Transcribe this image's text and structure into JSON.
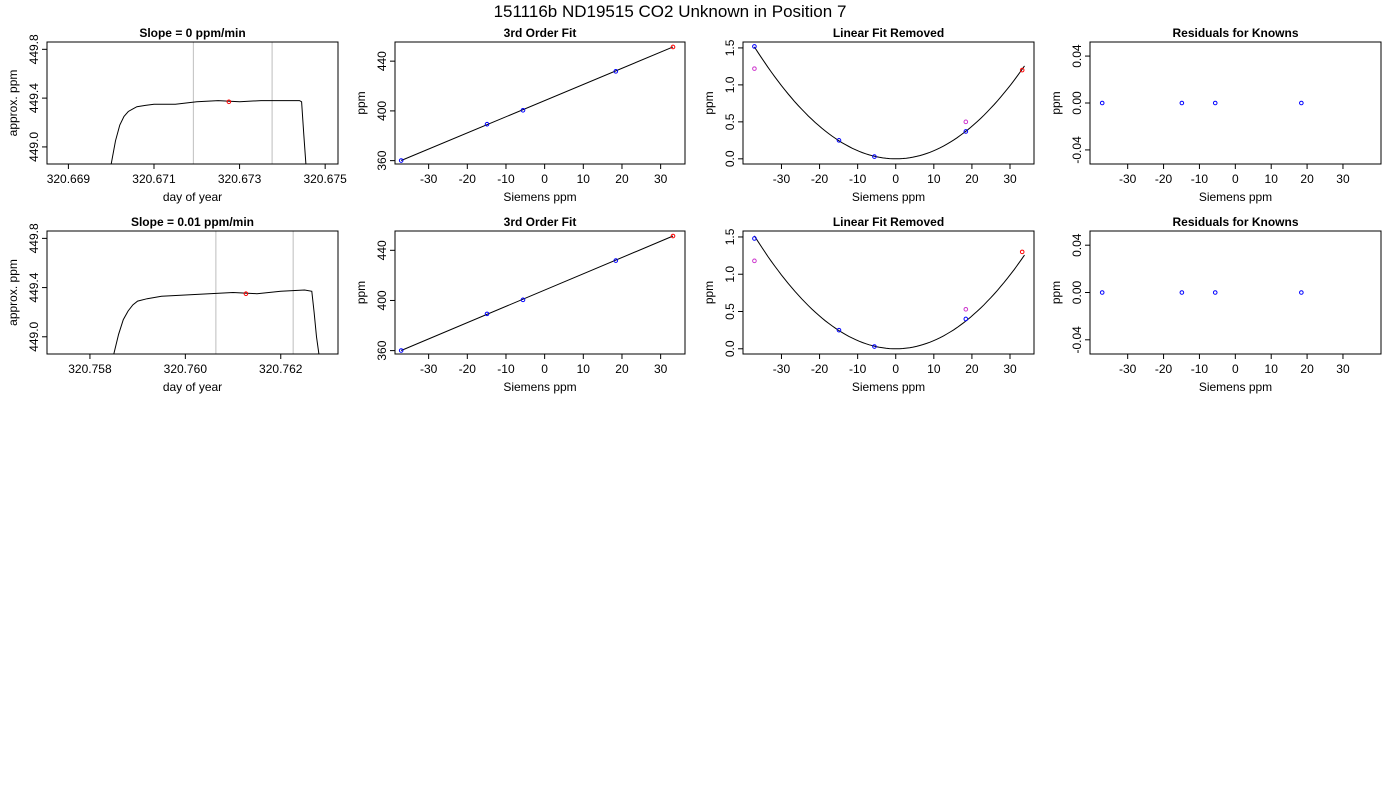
{
  "page_title": "151116b     ND19515   CO2 Unknown in Position  7",
  "colors": {
    "line": "#000000",
    "known_point": "#0000ff",
    "unknown_point": "#ff0000",
    "alt_point": "#cc33cc",
    "vline": "#bebebe"
  },
  "chart_data": [
    {
      "type": "line",
      "title": "Slope =  0  ppm/min",
      "xlabel": "day of year",
      "ylabel": "approx. ppm",
      "xlim": [
        320.6685,
        320.6753
      ],
      "ylim": [
        448.86,
        449.86
      ],
      "xticks": [
        "320.669",
        "320.671",
        "320.673",
        "320.675"
      ],
      "yticks": [
        "449.0",
        "449.4",
        "449.8"
      ],
      "vlines": [
        320.67192,
        320.67376
      ],
      "series": [
        {
          "x": [
            320.67,
            320.6701,
            320.6702,
            320.6703,
            320.6704,
            320.6705,
            320.6706,
            320.6708,
            320.671,
            320.6715,
            320.672,
            320.6725,
            320.673,
            320.6735,
            320.674,
            320.6744,
            320.67445,
            320.6745,
            320.67455
          ],
          "y": [
            448.86,
            449.05,
            449.18,
            449.25,
            449.29,
            449.31,
            449.33,
            449.34,
            449.35,
            449.35,
            449.37,
            449.38,
            449.37,
            449.38,
            449.38,
            449.38,
            449.37,
            449.1,
            448.86
          ]
        }
      ],
      "markers": [
        {
          "x": 320.67275,
          "y": 449.37,
          "color": "unknown"
        }
      ]
    },
    {
      "type": "scatter",
      "title": "3rd Order Fit",
      "xlabel": "Siemens ppm",
      "ylabel": "ppm",
      "xlim": [
        -38.7,
        36.3
      ],
      "ylim": [
        357.3,
        455.4
      ],
      "xticks": [
        "-30",
        "-20",
        "-10",
        "0",
        "10",
        "20",
        "30"
      ],
      "yticks": [
        "360",
        "400",
        "440"
      ],
      "fit_line": {
        "x": [
          -37.1,
          33.2
        ],
        "y": [
          360.1,
          451.4
        ]
      },
      "points": [
        {
          "x": -37.1,
          "y": 360.1,
          "color": "known"
        },
        {
          "x": -14.9,
          "y": 389.3,
          "color": "known"
        },
        {
          "x": -5.6,
          "y": 400.5,
          "color": "known"
        },
        {
          "x": 18.4,
          "y": 431.8,
          "color": "known"
        },
        {
          "x": 33.2,
          "y": 451.4,
          "color": "unknown"
        }
      ]
    },
    {
      "type": "scatter",
      "title": "Linear Fit Removed",
      "xlabel": "Siemens ppm",
      "ylabel": "ppm",
      "xlim": [
        -40.1,
        36.3
      ],
      "ylim": [
        -0.07,
        1.58
      ],
      "xticks": [
        "-30",
        "-20",
        "-10",
        "0",
        "10",
        "20",
        "30"
      ],
      "yticks": [
        "0.0",
        "0.5",
        "1.0",
        "1.5"
      ],
      "curve": {
        "a": 0.0011,
        "xmin": -37.1,
        "xmax": 33.8
      },
      "points": [
        {
          "x": -37.1,
          "y": 1.52,
          "color": "known"
        },
        {
          "x": -37.1,
          "y": 1.22,
          "color": "alt"
        },
        {
          "x": -14.9,
          "y": 0.25,
          "color": "known"
        },
        {
          "x": -5.6,
          "y": 0.03,
          "color": "known"
        },
        {
          "x": 18.4,
          "y": 0.37,
          "color": "known"
        },
        {
          "x": 18.4,
          "y": 0.5,
          "color": "alt"
        },
        {
          "x": 33.2,
          "y": 1.2,
          "color": "unknown"
        }
      ]
    },
    {
      "type": "scatter",
      "title": "Residuals for Knowns",
      "xlabel": "Siemens ppm",
      "ylabel": "ppm",
      "xlim": [
        -40.5,
        40.6
      ],
      "ylim": [
        -0.052,
        0.052
      ],
      "xticks": [
        "-30",
        "-20",
        "-10",
        "0",
        "10",
        "20",
        "30"
      ],
      "yticks": [
        "-0.04",
        "0.00",
        "0.04"
      ],
      "points": [
        {
          "x": -37.1,
          "y": 0,
          "color": "known"
        },
        {
          "x": -14.9,
          "y": 0,
          "color": "known"
        },
        {
          "x": -5.6,
          "y": 0,
          "color": "known"
        },
        {
          "x": 18.4,
          "y": 0,
          "color": "known"
        }
      ]
    },
    {
      "type": "line",
      "title": "Slope =  0.01  ppm/min",
      "xlabel": "day of year",
      "ylabel": "approx. ppm",
      "xlim": [
        320.7571,
        320.7632
      ],
      "ylim": [
        448.86,
        449.86
      ],
      "xticks": [
        "320.758",
        "320.760",
        "320.762"
      ],
      "yticks": [
        "449.0",
        "449.4",
        "449.8"
      ],
      "vlines": [
        320.76064,
        320.76226
      ],
      "series": [
        {
          "x": [
            320.7585,
            320.7586,
            320.7587,
            320.7588,
            320.7589,
            320.759,
            320.7592,
            320.7595,
            320.76,
            320.7605,
            320.761,
            320.7615,
            320.762,
            320.7625,
            320.76265,
            320.7627,
            320.76275,
            320.7628
          ],
          "y": [
            448.86,
            449.02,
            449.14,
            449.21,
            449.26,
            449.29,
            449.31,
            449.33,
            449.34,
            449.35,
            449.36,
            449.35,
            449.37,
            449.38,
            449.37,
            449.2,
            449.0,
            448.86
          ]
        }
      ],
      "markers": [
        {
          "x": 320.76127,
          "y": 449.35,
          "color": "unknown"
        }
      ]
    },
    {
      "type": "scatter",
      "title": "3rd Order Fit",
      "xlabel": "Siemens ppm",
      "ylabel": "ppm",
      "xlim": [
        -38.7,
        36.3
      ],
      "ylim": [
        357.3,
        455.4
      ],
      "xticks": [
        "-30",
        "-20",
        "-10",
        "0",
        "10",
        "20",
        "30"
      ],
      "yticks": [
        "360",
        "400",
        "440"
      ],
      "fit_line": {
        "x": [
          -37.1,
          33.2
        ],
        "y": [
          360.1,
          451.4
        ]
      },
      "points": [
        {
          "x": -37.1,
          "y": 360.1,
          "color": "known"
        },
        {
          "x": -14.9,
          "y": 389.3,
          "color": "known"
        },
        {
          "x": -5.6,
          "y": 400.5,
          "color": "known"
        },
        {
          "x": 18.4,
          "y": 431.8,
          "color": "known"
        },
        {
          "x": 33.2,
          "y": 451.4,
          "color": "unknown"
        }
      ]
    },
    {
      "type": "scatter",
      "title": "Linear Fit Removed",
      "xlabel": "Siemens ppm",
      "ylabel": "ppm",
      "xlim": [
        -40.1,
        36.3
      ],
      "ylim": [
        -0.07,
        1.58
      ],
      "xticks": [
        "-30",
        "-20",
        "-10",
        "0",
        "10",
        "20",
        "30"
      ],
      "yticks": [
        "0.0",
        "0.5",
        "1.0",
        "1.5"
      ],
      "curve": {
        "a": 0.0011,
        "xmin": -37.1,
        "xmax": 33.8
      },
      "points": [
        {
          "x": -37.1,
          "y": 1.48,
          "color": "known"
        },
        {
          "x": -37.1,
          "y": 1.18,
          "color": "alt"
        },
        {
          "x": -14.9,
          "y": 0.25,
          "color": "known"
        },
        {
          "x": -5.6,
          "y": 0.03,
          "color": "known"
        },
        {
          "x": 18.4,
          "y": 0.4,
          "color": "known"
        },
        {
          "x": 18.4,
          "y": 0.53,
          "color": "alt"
        },
        {
          "x": 33.2,
          "y": 1.3,
          "color": "unknown"
        }
      ]
    },
    {
      "type": "scatter",
      "title": "Residuals for Knowns",
      "xlabel": "Siemens ppm",
      "ylabel": "ppm",
      "xlim": [
        -40.5,
        40.6
      ],
      "ylim": [
        -0.052,
        0.052
      ],
      "xticks": [
        "-30",
        "-20",
        "-10",
        "0",
        "10",
        "20",
        "30"
      ],
      "yticks": [
        "-0.04",
        "0.00",
        "0.04"
      ],
      "points": [
        {
          "x": -37.1,
          "y": 0,
          "color": "known"
        },
        {
          "x": -14.9,
          "y": 0,
          "color": "known"
        },
        {
          "x": -5.6,
          "y": 0,
          "color": "known"
        },
        {
          "x": 18.4,
          "y": 0,
          "color": "known"
        }
      ]
    }
  ]
}
